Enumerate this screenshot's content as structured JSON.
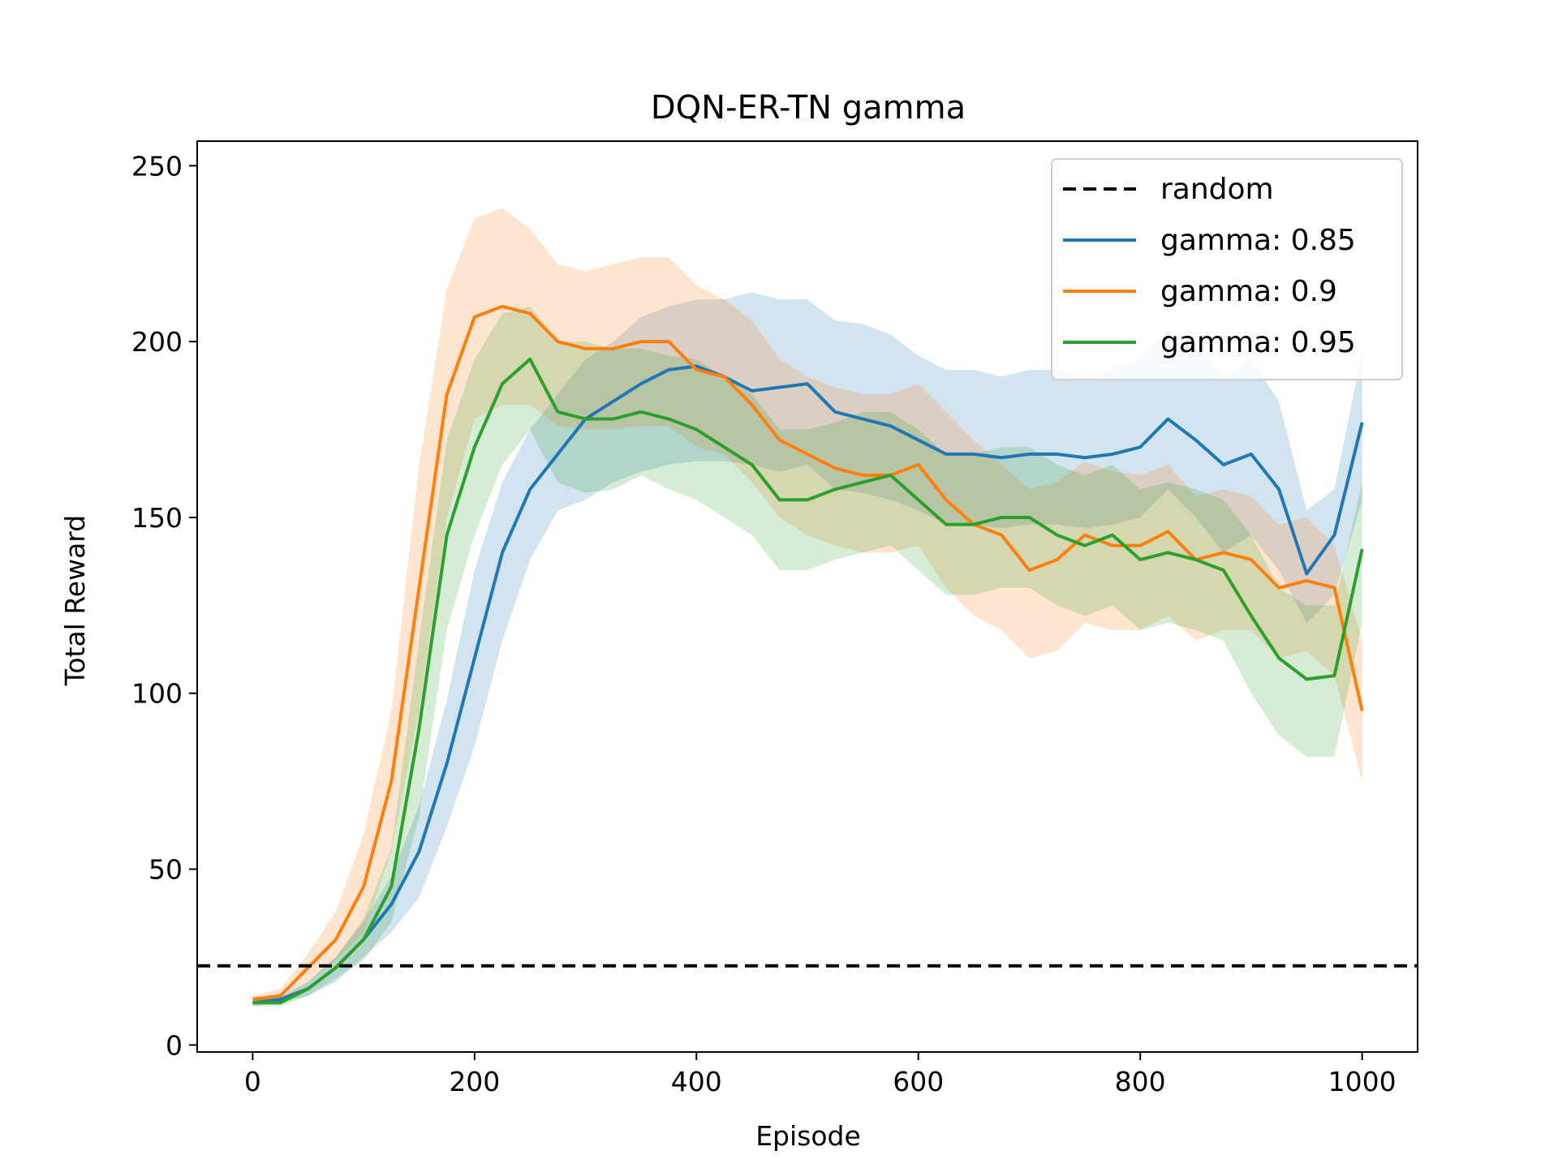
{
  "chart_data": {
    "type": "line",
    "title": "DQN-ER-TN gamma",
    "xlabel": "Episode",
    "ylabel": "Total Reward",
    "xlim": [
      -50,
      1050
    ],
    "ylim": [
      -2,
      257
    ],
    "xticks": [
      0,
      200,
      400,
      600,
      800,
      1000
    ],
    "yticks": [
      0,
      50,
      100,
      150,
      200,
      250
    ],
    "grid": false,
    "legend_position": "top-right",
    "reference_line": {
      "name": "random",
      "y": 22.5,
      "color": "#000000",
      "style": "dashed"
    },
    "series": [
      {
        "name": "gamma: 0.85",
        "color": "#1f77b4",
        "x": [
          0,
          25,
          50,
          75,
          100,
          125,
          150,
          175,
          200,
          225,
          250,
          275,
          300,
          325,
          350,
          375,
          400,
          425,
          450,
          475,
          500,
          525,
          550,
          575,
          600,
          625,
          650,
          675,
          700,
          725,
          750,
          775,
          800,
          825,
          850,
          875,
          900,
          925,
          950,
          975,
          1000
        ],
        "y": [
          12,
          13,
          16,
          22,
          30,
          40,
          55,
          80,
          110,
          140,
          158,
          168,
          178,
          183,
          188,
          192,
          193,
          190,
          186,
          187,
          188,
          180,
          178,
          176,
          172,
          168,
          168,
          167,
          168,
          168,
          167,
          168,
          170,
          178,
          172,
          165,
          168,
          158,
          134,
          145,
          177
        ],
        "upper": [
          13,
          14,
          18,
          25,
          35,
          48,
          68,
          98,
          135,
          160,
          175,
          185,
          195,
          200,
          207,
          210,
          212,
          212,
          214,
          212,
          212,
          206,
          205,
          202,
          196,
          192,
          192,
          190,
          192,
          192,
          190,
          192,
          195,
          203,
          200,
          190,
          195,
          183,
          152,
          158,
          197
        ],
        "lower": [
          11,
          12,
          14,
          18,
          25,
          32,
          42,
          62,
          85,
          115,
          138,
          152,
          155,
          160,
          163,
          165,
          166,
          166,
          165,
          163,
          165,
          158,
          157,
          155,
          152,
          148,
          148,
          147,
          148,
          148,
          147,
          148,
          150,
          158,
          150,
          140,
          145,
          135,
          120,
          128,
          155
        ]
      },
      {
        "name": "gamma: 0.9",
        "color": "#ff7f0e",
        "x": [
          0,
          25,
          50,
          75,
          100,
          125,
          150,
          175,
          200,
          225,
          250,
          275,
          300,
          325,
          350,
          375,
          400,
          425,
          450,
          475,
          500,
          525,
          550,
          575,
          600,
          625,
          650,
          675,
          700,
          725,
          750,
          775,
          800,
          825,
          850,
          875,
          900,
          925,
          950,
          975,
          1000
        ],
        "y": [
          13,
          14,
          22,
          30,
          45,
          75,
          130,
          185,
          207,
          210,
          208,
          200,
          198,
          198,
          200,
          200,
          192,
          190,
          182,
          172,
          168,
          164,
          162,
          162,
          165,
          155,
          148,
          145,
          135,
          138,
          145,
          142,
          142,
          146,
          138,
          140,
          138,
          130,
          132,
          130,
          95
        ],
        "upper": [
          14,
          16,
          26,
          38,
          60,
          95,
          165,
          215,
          235,
          238,
          232,
          222,
          220,
          222,
          224,
          224,
          216,
          212,
          206,
          195,
          190,
          187,
          185,
          185,
          188,
          180,
          172,
          165,
          158,
          160,
          166,
          163,
          162,
          165,
          156,
          158,
          156,
          148,
          150,
          142,
          115
        ],
        "lower": [
          12,
          12,
          18,
          24,
          32,
          55,
          95,
          150,
          178,
          182,
          182,
          176,
          175,
          175,
          176,
          176,
          170,
          168,
          160,
          150,
          145,
          142,
          140,
          140,
          142,
          130,
          122,
          118,
          110,
          112,
          120,
          118,
          118,
          122,
          115,
          118,
          118,
          110,
          112,
          105,
          75
        ]
      },
      {
        "name": "gamma: 0.95",
        "color": "#2ca02c",
        "x": [
          0,
          25,
          50,
          75,
          100,
          125,
          150,
          175,
          200,
          225,
          250,
          275,
          300,
          325,
          350,
          375,
          400,
          425,
          450,
          475,
          500,
          525,
          550,
          575,
          600,
          625,
          650,
          675,
          700,
          725,
          750,
          775,
          800,
          825,
          850,
          875,
          900,
          925,
          950,
          975,
          1000
        ],
        "y": [
          12,
          12,
          16,
          22,
          30,
          45,
          90,
          145,
          170,
          188,
          195,
          180,
          178,
          178,
          180,
          178,
          175,
          170,
          165,
          155,
          155,
          158,
          160,
          162,
          155,
          148,
          148,
          150,
          150,
          145,
          142,
          145,
          138,
          140,
          138,
          135,
          122,
          110,
          104,
          105,
          141
        ],
        "upper": [
          13,
          13,
          18,
          25,
          36,
          56,
          115,
          172,
          195,
          208,
          210,
          200,
          200,
          198,
          198,
          196,
          195,
          190,
          185,
          175,
          175,
          177,
          180,
          180,
          175,
          168,
          168,
          170,
          170,
          165,
          162,
          165,
          158,
          160,
          158,
          155,
          145,
          130,
          125,
          125,
          160
        ],
        "lower": [
          11,
          11,
          14,
          19,
          24,
          35,
          65,
          118,
          145,
          165,
          175,
          160,
          157,
          158,
          162,
          158,
          155,
          150,
          145,
          135,
          135,
          138,
          140,
          142,
          135,
          128,
          128,
          130,
          130,
          125,
          122,
          125,
          118,
          120,
          118,
          115,
          100,
          88,
          82,
          82,
          120
        ]
      }
    ]
  }
}
